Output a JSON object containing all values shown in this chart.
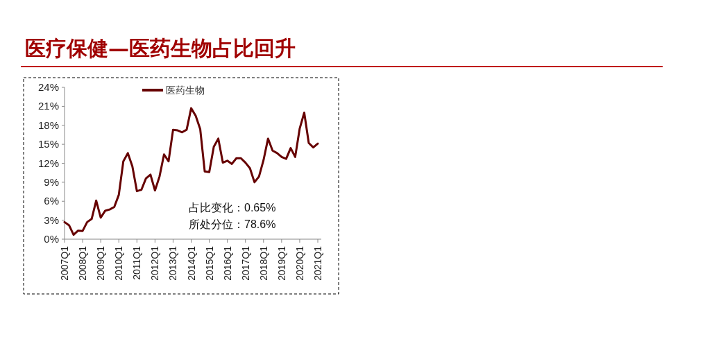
{
  "chart_data": {
    "type": "line",
    "title": "医疗保健—医药生物占比回升",
    "categories": [
      "2007Q1",
      null,
      null,
      null,
      "2008Q1",
      null,
      null,
      null,
      "2009Q1",
      null,
      null,
      null,
      "2010Q1",
      null,
      null,
      null,
      "2011Q1",
      null,
      null,
      null,
      "2012Q1",
      null,
      null,
      null,
      "2013Q1",
      null,
      null,
      null,
      "2014Q1",
      null,
      null,
      null,
      "2015Q1",
      null,
      null,
      null,
      "2016Q1",
      null,
      null,
      null,
      "2017Q1",
      null,
      null,
      null,
      "2018Q1",
      null,
      null,
      null,
      "2019Q1",
      null,
      null,
      null,
      "2020Q1",
      null,
      null,
      null,
      "2021Q1"
    ],
    "series": [
      {
        "name": "医药生物",
        "color": "#660000",
        "values": [
          2.7,
          2.2,
          0.7,
          1.35,
          1.3,
          2.7,
          3.2,
          6.1,
          3.4,
          4.5,
          4.7,
          5.1,
          7.0,
          12.3,
          13.6,
          11.5,
          7.6,
          7.8,
          9.6,
          10.2,
          7.7,
          9.9,
          13.4,
          12.3,
          17.3,
          17.2,
          16.9,
          17.3,
          20.7,
          19.5,
          17.4,
          10.7,
          10.6,
          14.6,
          15.9,
          12.1,
          12.4,
          11.9,
          12.8,
          12.8,
          12.1,
          11.2,
          9.0,
          9.9,
          12.5,
          15.9,
          14.0,
          13.6,
          13.0,
          12.7,
          14.4,
          13.0,
          17.5,
          20.0,
          15.2,
          14.5,
          15.1
        ]
      }
    ],
    "ylim": [
      0,
      24
    ],
    "yticks": [
      {
        "value": 0,
        "label": "0%"
      },
      {
        "value": 3,
        "label": "3%"
      },
      {
        "value": 6,
        "label": "6%"
      },
      {
        "value": 9,
        "label": "9%"
      },
      {
        "value": 12,
        "label": "12%"
      },
      {
        "value": 15,
        "label": "15%"
      },
      {
        "value": 18,
        "label": "18%"
      },
      {
        "value": 21,
        "label": "21%"
      },
      {
        "value": 24,
        "label": "24%"
      }
    ],
    "annotations": [
      "占比变化：0.65%",
      "所处分位：78.6%"
    ],
    "legend": "top",
    "grid": false
  }
}
